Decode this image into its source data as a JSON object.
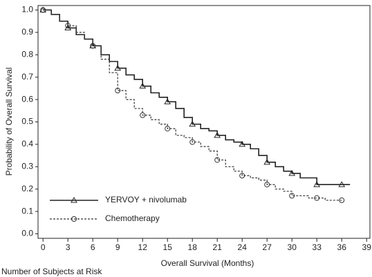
{
  "chart_data": {
    "type": "line",
    "x_label": "Overall Survival (Months)",
    "y_label": "Probability of Overall Survival",
    "footnote": "Number of Subjects at Risk",
    "xlim": [
      -0.6,
      39.4
    ],
    "ylim": [
      -0.02,
      1.02
    ],
    "xticks": [
      0,
      3,
      6,
      9,
      12,
      15,
      18,
      21,
      24,
      27,
      30,
      33,
      36,
      39
    ],
    "yticks": [
      {
        "value": 0,
        "label": "0.0"
      },
      0.1,
      0.2,
      0.3,
      0.4,
      0.5,
      0.6,
      0.7,
      0.8,
      0.9,
      {
        "value": 1,
        "label": "1.0"
      }
    ],
    "legend": "lower left",
    "x": [
      0,
      1,
      2,
      3,
      4,
      5,
      6,
      7,
      8,
      9,
      10,
      11,
      12,
      13,
      14,
      15,
      16,
      17,
      18,
      19,
      20,
      21,
      22,
      23,
      24,
      25,
      26,
      27,
      28,
      29,
      30,
      31,
      32,
      33,
      34,
      35,
      36,
      37
    ],
    "series": [
      {
        "name": "YERVOY + nivolumab",
        "color": "#222222",
        "marker": "triangle",
        "dash": "solid",
        "values": [
          1.0,
          0.98,
          0.95,
          0.92,
          0.89,
          0.87,
          0.84,
          0.8,
          0.77,
          0.74,
          0.71,
          0.69,
          0.66,
          0.63,
          0.61,
          0.59,
          0.56,
          0.52,
          0.49,
          0.47,
          0.46,
          0.44,
          0.42,
          0.41,
          0.4,
          0.38,
          0.35,
          0.32,
          0.3,
          0.28,
          0.27,
          0.25,
          0.25,
          0.22,
          0.22,
          0.22,
          0.22,
          0.22
        ]
      },
      {
        "name": "Chemotherapy",
        "color": "#333333",
        "marker": "circle",
        "dash": "dashed",
        "values": [
          1.0,
          0.98,
          0.95,
          0.93,
          0.9,
          0.87,
          0.84,
          0.78,
          0.72,
          0.64,
          0.6,
          0.56,
          0.53,
          0.51,
          0.49,
          0.47,
          0.44,
          0.43,
          0.41,
          0.39,
          0.37,
          0.33,
          0.3,
          0.28,
          0.26,
          0.25,
          0.24,
          0.22,
          0.2,
          0.19,
          0.17,
          0.17,
          0.16,
          0.16,
          0.15,
          0.15,
          0.15,
          null
        ]
      }
    ]
  }
}
